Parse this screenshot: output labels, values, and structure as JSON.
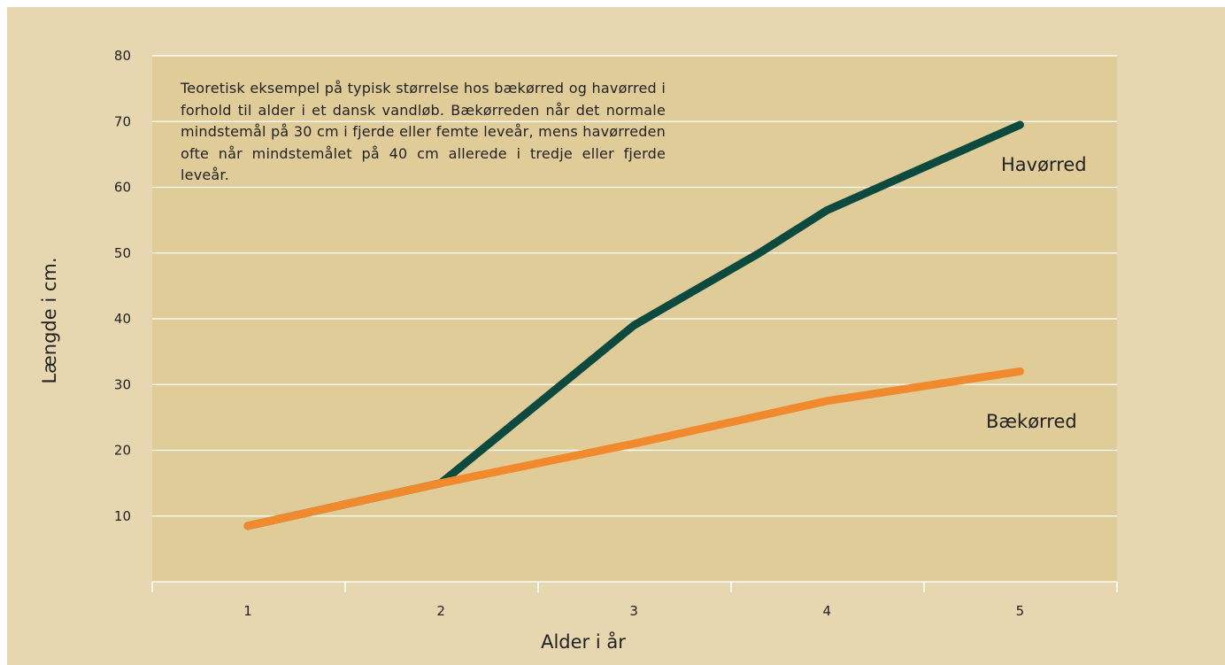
{
  "chart_data": {
    "type": "line",
    "title": "",
    "xlabel": "Alder i år",
    "ylabel": "Længde i cm.",
    "categories": [
      "1",
      "2",
      "3",
      "4",
      "5"
    ],
    "x_ticks": [
      "1",
      "2",
      "3",
      "4",
      "5"
    ],
    "y_ticks": [
      "10",
      "20",
      "30",
      "40",
      "50",
      "60",
      "70",
      "80"
    ],
    "ylim": [
      0,
      80
    ],
    "grid": true,
    "annotation": "Teoretisk eksempel på typisk størrelse hos bækørred og havørred i forhold til alder i et dansk vandløb. Bækørreden når det normale mindstemål på 30 cm i fjerde eller femte leveår, mens havørreden ofte når mindstemålet på 40 cm allerede i tredje eller fjerde leveår.",
    "series": [
      {
        "name": "Havørred",
        "color": "#0c4a40",
        "x": [
          1,
          2,
          3,
          3.65,
          4,
          5
        ],
        "values": [
          8.5,
          15,
          39,
          50,
          56.5,
          69.5
        ]
      },
      {
        "name": "Bækørred",
        "color": "#f18a2c",
        "x": [
          1,
          2,
          3,
          4,
          5
        ],
        "values": [
          8.5,
          15,
          21,
          27.5,
          32
        ]
      }
    ]
  },
  "colors": {
    "frame_background": "#e6d7b0",
    "plot_background": "#e0cc98",
    "gridline": "#ffffff"
  }
}
